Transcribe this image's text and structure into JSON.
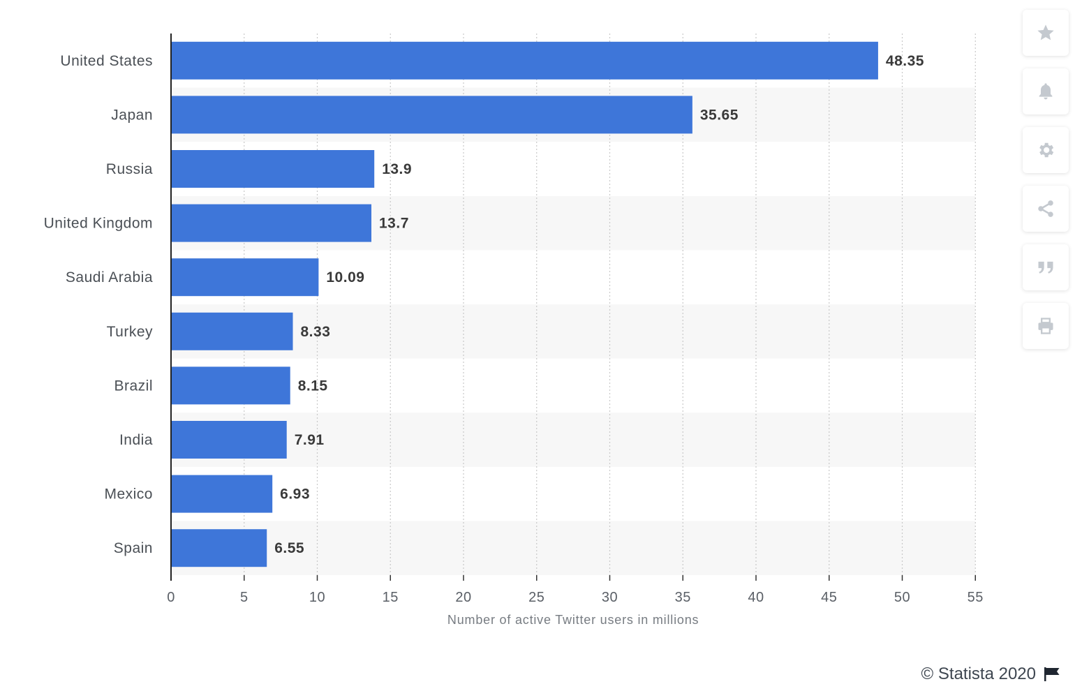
{
  "chart_data": {
    "type": "bar",
    "orientation": "horizontal",
    "categories": [
      "United States",
      "Japan",
      "Russia",
      "United Kingdom",
      "Saudi Arabia",
      "Turkey",
      "Brazil",
      "India",
      "Mexico",
      "Spain"
    ],
    "values": [
      48.35,
      35.65,
      13.9,
      13.7,
      10.09,
      8.33,
      8.15,
      7.91,
      6.93,
      6.55
    ],
    "value_labels": [
      "48.35",
      "35.65",
      "13.9",
      "13.7",
      "10.09",
      "8.33",
      "8.15",
      "7.91",
      "6.93",
      "6.55"
    ],
    "xlabel": "Number of active Twitter users in millions",
    "ylabel": "",
    "xlim": [
      0,
      55
    ],
    "xticks": [
      "0",
      "5",
      "10",
      "15",
      "20",
      "25",
      "30",
      "35",
      "40",
      "45",
      "50",
      "55"
    ],
    "grid": true,
    "bar_color": "#3e76d9"
  },
  "toolbar": {
    "buttons": [
      {
        "name": "star-icon"
      },
      {
        "name": "bell-icon"
      },
      {
        "name": "gear-icon"
      },
      {
        "name": "share-icon"
      },
      {
        "name": "quote-icon"
      },
      {
        "name": "print-icon"
      }
    ],
    "icon_color": "#c4c9cf"
  },
  "footer": {
    "credit": "© Statista 2020"
  }
}
